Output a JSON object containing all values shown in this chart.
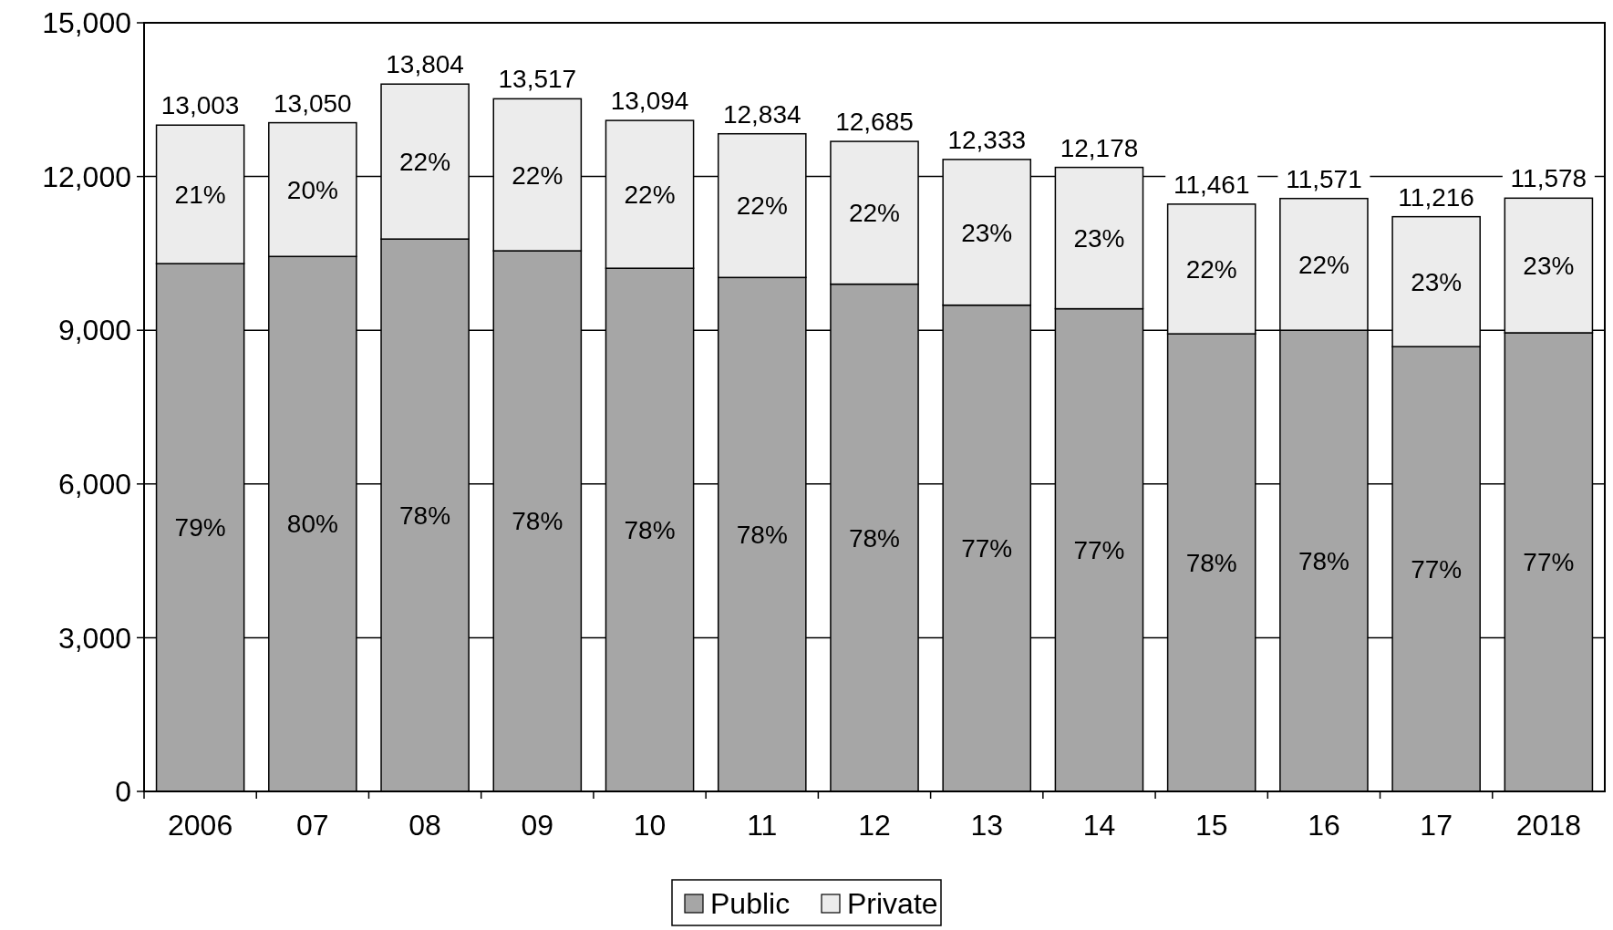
{
  "chart_data": {
    "type": "bar",
    "stacked": true,
    "categories": [
      "2006",
      "07",
      "08",
      "09",
      "10",
      "11",
      "12",
      "13",
      "14",
      "15",
      "16",
      "17",
      "2018"
    ],
    "series": [
      {
        "name": "Public",
        "color": "#a6a6a6",
        "values": [
          10300,
          10440,
          10780,
          10550,
          10210,
          10030,
          9900,
          9490,
          9420,
          8930,
          9000,
          8680,
          8950
        ]
      },
      {
        "name": "Private",
        "color": "#ececec",
        "values": [
          2703,
          2610,
          3024,
          2967,
          2884,
          2804,
          2785,
          2843,
          2758,
          2531,
          2571,
          2536,
          2628
        ]
      }
    ],
    "totals": [
      "13,003",
      "13,050",
      "13,804",
      "13,517",
      "13,094",
      "12,834",
      "12,685",
      "12,333",
      "12,178",
      "11,461",
      "11,571",
      "11,216",
      "11,578"
    ],
    "annotations": [
      "79%",
      "80%",
      "78%",
      "78%",
      "78%",
      "78%",
      "78%",
      "77%",
      "77%",
      "78%",
      "78%",
      "77%",
      "77%",
      {
        "text": "21%",
        "x": "2006",
        "y": 13003
      },
      {
        "text": "20%",
        "x": "07",
        "y": 13050
      },
      {
        "text": "22%",
        "x": "08",
        "y": 13804
      },
      {
        "text": "22%",
        "x": "09",
        "y": 13517
      },
      {
        "text": "22%",
        "x": "10",
        "y": 13094
      },
      {
        "text": "22%",
        "x": "11",
        "y": 12834
      },
      {
        "text": "22%",
        "x": "12",
        "y": 12685
      },
      {
        "text": "23%",
        "x": "13",
        "y": 12333
      },
      {
        "text": "23%",
        "x": "14",
        "y": 12178
      },
      {
        "text": "22%",
        "x": "15",
        "y": 11461
      },
      {
        "text": "22%",
        "x": "16",
        "y": 11571
      },
      {
        "text": "23%",
        "x": "17",
        "y": 11216
      },
      {
        "text": "23%",
        "x": "2018",
        "y": 11578
      }
    ],
    "ylim": [
      0,
      15000
    ],
    "yticks": [
      0,
      {
        "value": 3000,
        "label": "3,000"
      },
      {
        "value": 6000,
        "label": "6,000"
      },
      {
        "value": 9000,
        "label": "9,000"
      },
      {
        "value": 12000,
        "label": "12,000"
      },
      {
        "value": 15000,
        "label": "15,000"
      }
    ],
    "grid": "y",
    "legend": "bottom"
  }
}
